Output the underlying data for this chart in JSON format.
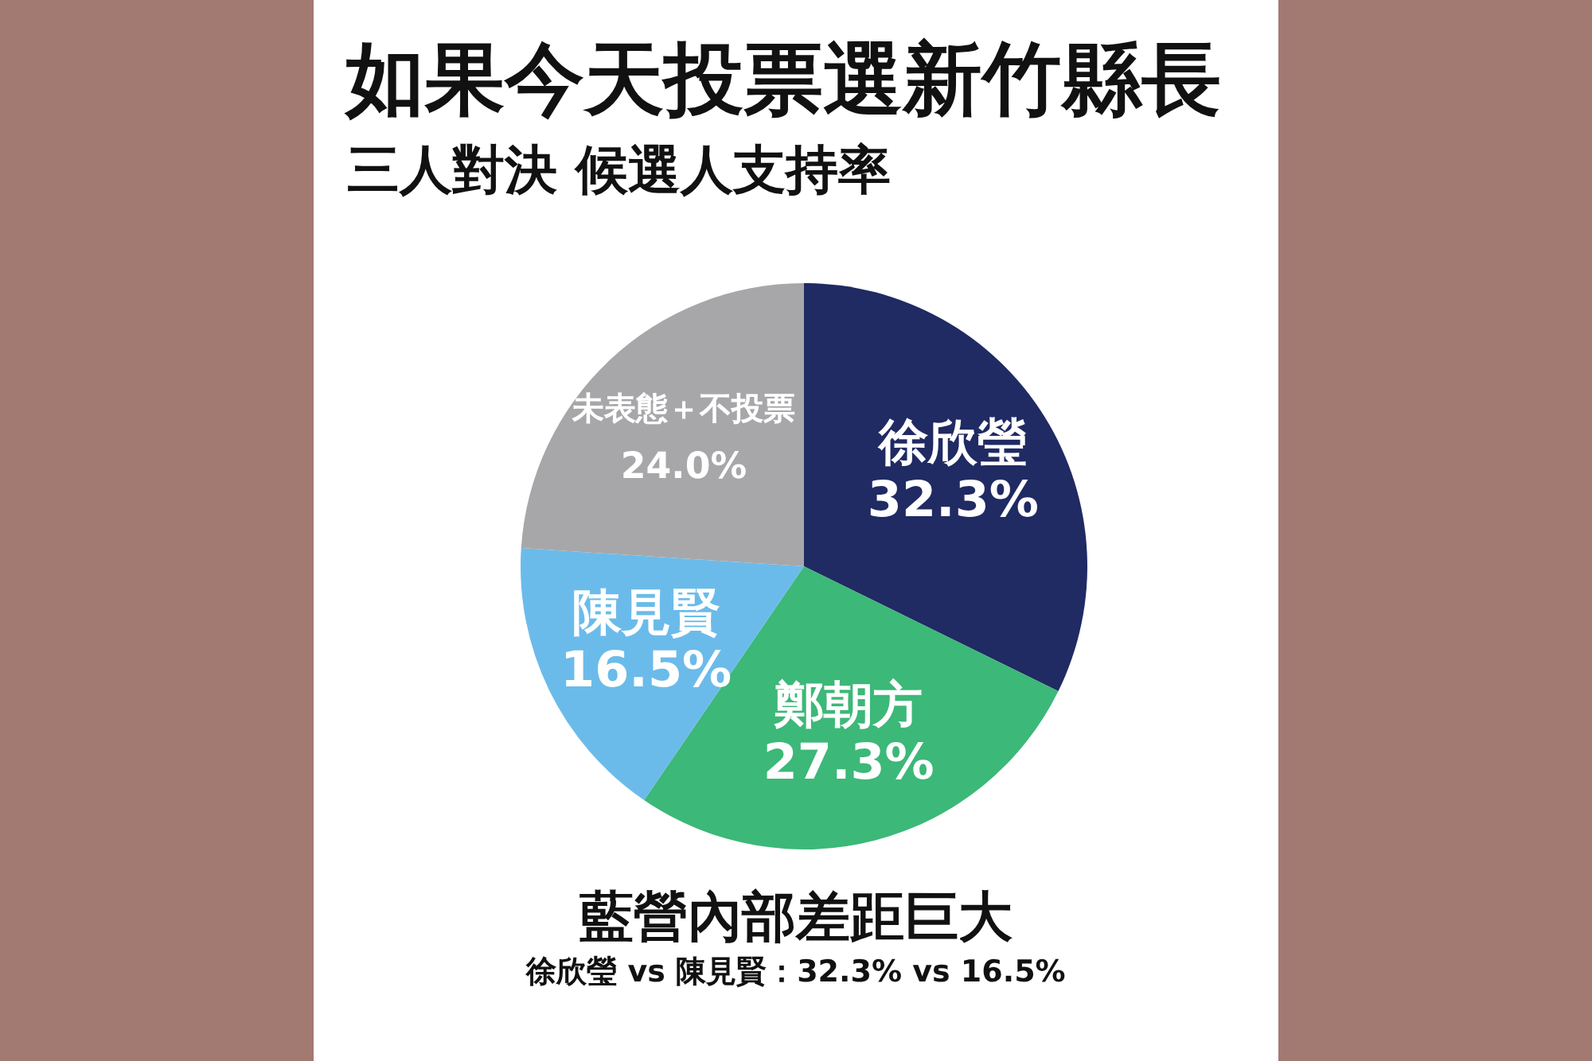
{
  "chart_data": {
    "type": "pie",
    "title": "如果今天投票選新竹縣長",
    "subtitle": "三人對決 候選人支持率",
    "categories": [
      "徐欣瑩",
      "鄭朝方",
      "陳見賢",
      "未表態＋不投票"
    ],
    "values": [
      32.3,
      27.3,
      16.5,
      24.0
    ],
    "colors": [
      "#202a63",
      "#3cb878",
      "#6bbbea",
      "#a7a7a9"
    ],
    "value_labels": [
      "32.3%",
      "27.3%",
      "16.5%",
      "24.0%"
    ],
    "annotations": [
      "藍營內部差距巨大",
      "徐欣瑩 vs 陳見賢：32.3% vs 16.5%"
    ]
  }
}
